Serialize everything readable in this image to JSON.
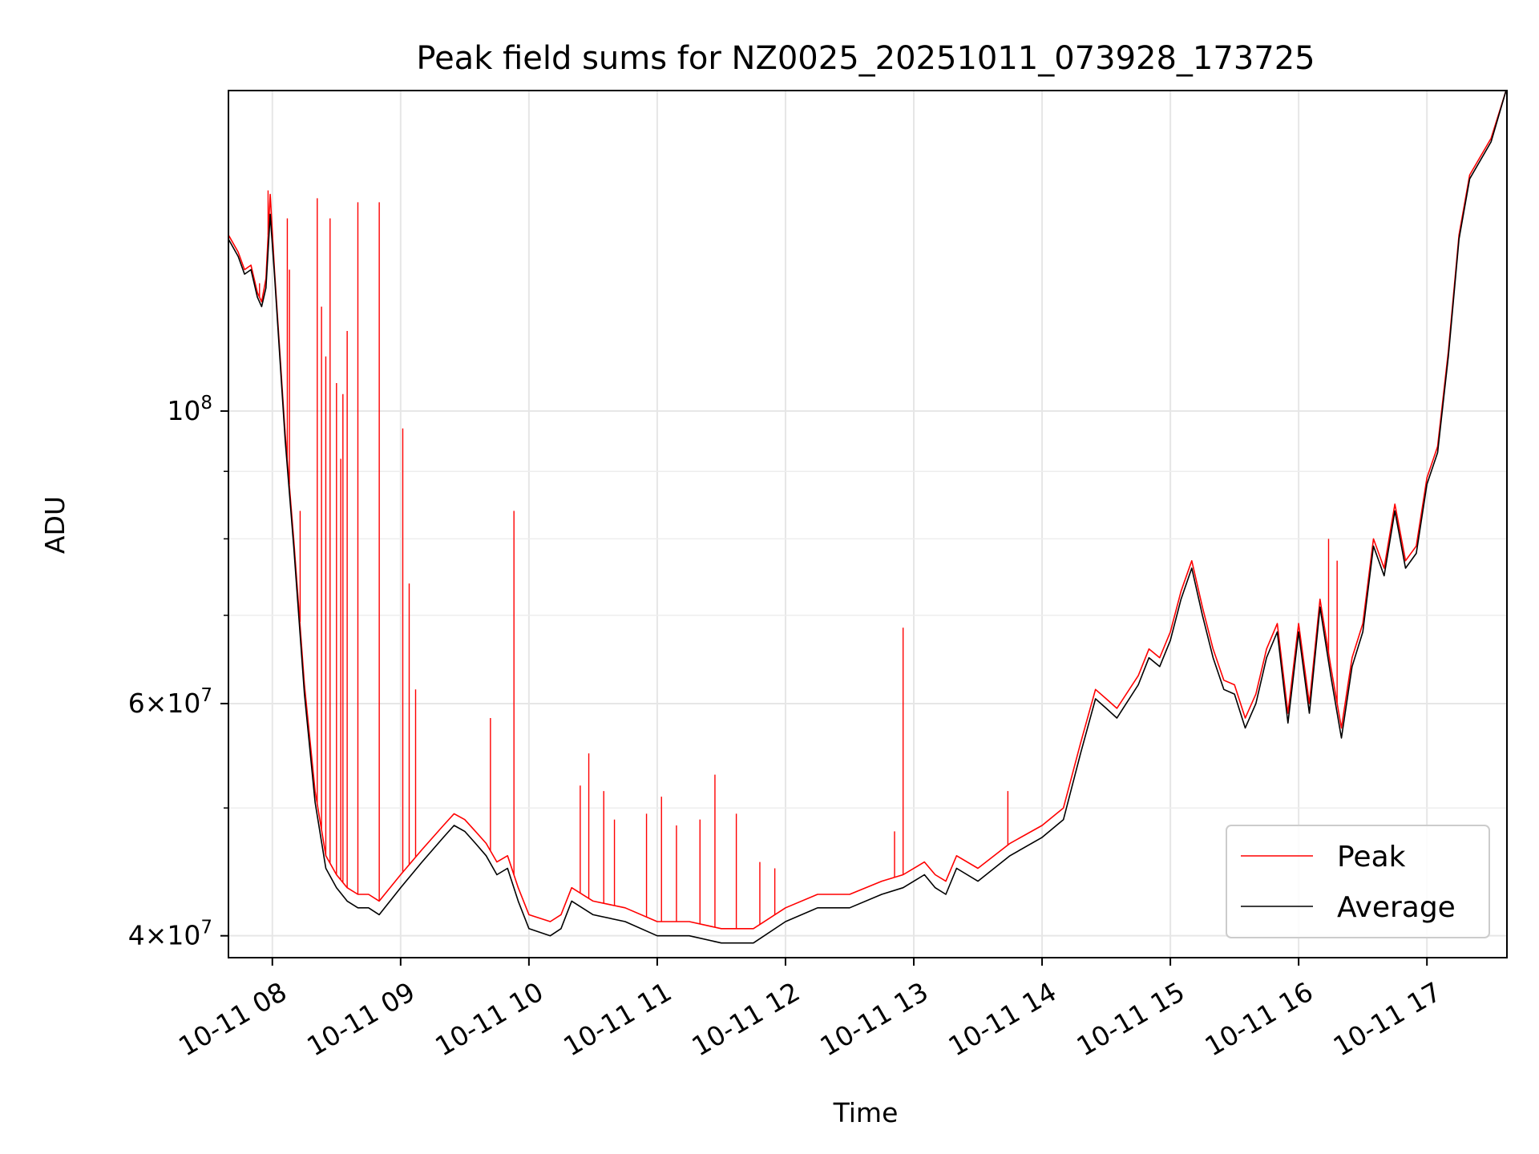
{
  "chart_data": {
    "type": "line",
    "title": "Peak field sums for NZ0025_20251011_073928_173725",
    "xlabel": "Time",
    "ylabel": "ADU",
    "yscale": "log",
    "grid": true,
    "legend_position": "lower-right",
    "xlim": [
      "2025-10-11 07:39:28",
      "2025-10-11 17:37:25"
    ],
    "ylim": [
      38500000,
      175000000
    ],
    "x_ticks": [
      {
        "value": "2025-10-11 08:00",
        "label": "10-11 08"
      },
      {
        "value": "2025-10-11 09:00",
        "label": "10-11 09"
      },
      {
        "value": "2025-10-11 10:00",
        "label": "10-11 10"
      },
      {
        "value": "2025-10-11 11:00",
        "label": "10-11 11"
      },
      {
        "value": "2025-10-11 12:00",
        "label": "10-11 12"
      },
      {
        "value": "2025-10-11 13:00",
        "label": "10-11 13"
      },
      {
        "value": "2025-10-11 14:00",
        "label": "10-11 14"
      },
      {
        "value": "2025-10-11 15:00",
        "label": "10-11 15"
      },
      {
        "value": "2025-10-11 16:00",
        "label": "10-11 16"
      },
      {
        "value": "2025-10-11 17:00",
        "label": "10-11 17"
      }
    ],
    "y_major_ticks": [
      {
        "value": 40000000,
        "mant": "4",
        "exp": "7"
      },
      {
        "value": 60000000,
        "mant": "6",
        "exp": "7"
      },
      {
        "value": 100000000,
        "mant": "",
        "exp": "8"
      }
    ],
    "y_minor_ticks": [
      50000000,
      70000000,
      80000000,
      90000000
    ],
    "series": [
      {
        "name": "Average",
        "color": "#000000",
        "x": [
          "2025-10-11 07:39:28",
          "2025-10-11 07:44",
          "2025-10-11 07:47",
          "2025-10-11 07:50",
          "2025-10-11 07:53",
          "2025-10-11 07:55",
          "2025-10-11 07:57",
          "2025-10-11 07:59",
          "2025-10-11 08:01",
          "2025-10-11 08:06",
          "2025-10-11 08:10",
          "2025-10-11 08:15",
          "2025-10-11 08:20",
          "2025-10-11 08:25",
          "2025-10-11 08:30",
          "2025-10-11 08:35",
          "2025-10-11 08:40",
          "2025-10-11 08:45",
          "2025-10-11 08:50",
          "2025-10-11 09:00",
          "2025-10-11 09:10",
          "2025-10-11 09:20",
          "2025-10-11 09:25",
          "2025-10-11 09:30",
          "2025-10-11 09:35",
          "2025-10-11 09:40",
          "2025-10-11 09:45",
          "2025-10-11 09:50",
          "2025-10-11 09:55",
          "2025-10-11 10:00",
          "2025-10-11 10:10",
          "2025-10-11 10:15",
          "2025-10-11 10:20",
          "2025-10-11 10:30",
          "2025-10-11 10:45",
          "2025-10-11 11:00",
          "2025-10-11 11:15",
          "2025-10-11 11:30",
          "2025-10-11 11:45",
          "2025-10-11 12:00",
          "2025-10-11 12:15",
          "2025-10-11 12:30",
          "2025-10-11 12:45",
          "2025-10-11 12:55",
          "2025-10-11 13:05",
          "2025-10-11 13:10",
          "2025-10-11 13:15",
          "2025-10-11 13:20",
          "2025-10-11 13:30",
          "2025-10-11 13:45",
          "2025-10-11 14:00",
          "2025-10-11 14:10",
          "2025-10-11 14:18",
          "2025-10-11 14:25",
          "2025-10-11 14:30",
          "2025-10-11 14:35",
          "2025-10-11 14:45",
          "2025-10-11 14:50",
          "2025-10-11 14:55",
          "2025-10-11 15:00",
          "2025-10-11 15:05",
          "2025-10-11 15:10",
          "2025-10-11 15:15",
          "2025-10-11 15:20",
          "2025-10-11 15:25",
          "2025-10-11 15:30",
          "2025-10-11 15:35",
          "2025-10-11 15:40",
          "2025-10-11 15:45",
          "2025-10-11 15:50",
          "2025-10-11 15:55",
          "2025-10-11 16:00",
          "2025-10-11 16:05",
          "2025-10-11 16:10",
          "2025-10-11 16:15",
          "2025-10-11 16:20",
          "2025-10-11 16:25",
          "2025-10-11 16:30",
          "2025-10-11 16:35",
          "2025-10-11 16:40",
          "2025-10-11 16:45",
          "2025-10-11 16:50",
          "2025-10-11 16:55",
          "2025-10-11 17:00",
          "2025-10-11 17:05",
          "2025-10-11 17:10",
          "2025-10-11 17:15",
          "2025-10-11 17:20",
          "2025-10-11 17:30",
          "2025-10-11 17:37"
        ],
        "y": [
          135000000,
          131000000,
          127000000,
          128000000,
          122000000,
          120000000,
          124000000,
          141000000,
          127000000,
          95000000,
          79000000,
          61000000,
          50500000,
          45000000,
          43500000,
          42500000,
          42000000,
          42000000,
          41500000,
          43500000,
          45500000,
          47500000,
          48500000,
          48000000,
          47000000,
          46000000,
          44500000,
          45000000,
          42500000,
          40500000,
          40000000,
          40500000,
          42500000,
          41500000,
          41000000,
          40000000,
          40000000,
          39500000,
          39500000,
          41000000,
          42000000,
          42000000,
          43000000,
          43500000,
          44500000,
          43500000,
          43000000,
          45000000,
          44000000,
          46000000,
          47500000,
          49000000,
          55000000,
          60500000,
          59500000,
          58500000,
          62000000,
          65000000,
          64000000,
          67000000,
          72000000,
          76000000,
          70000000,
          65000000,
          61500000,
          61000000,
          57500000,
          60000000,
          65000000,
          68000000,
          58000000,
          68000000,
          59000000,
          71000000,
          63000000,
          56500000,
          64000000,
          68000000,
          79000000,
          75000000,
          84000000,
          76000000,
          78000000,
          88000000,
          93000000,
          110000000,
          135000000,
          150000000,
          160000000,
          175000000
        ]
      },
      {
        "name": "Peak",
        "color": "#ff0000",
        "x": [
          "2025-10-11 07:39:28",
          "2025-10-11 07:44",
          "2025-10-11 07:47",
          "2025-10-11 07:50",
          "2025-10-11 07:53",
          "2025-10-11 07:55",
          "2025-10-11 07:57",
          "2025-10-11 07:59",
          "2025-10-11 08:01",
          "2025-10-11 08:06",
          "2025-10-11 08:10",
          "2025-10-11 08:15",
          "2025-10-11 08:20",
          "2025-10-11 08:25",
          "2025-10-11 08:30",
          "2025-10-11 08:35",
          "2025-10-11 08:40",
          "2025-10-11 08:45",
          "2025-10-11 08:50",
          "2025-10-11 09:00",
          "2025-10-11 09:10",
          "2025-10-11 09:20",
          "2025-10-11 09:25",
          "2025-10-11 09:30",
          "2025-10-11 09:35",
          "2025-10-11 09:40",
          "2025-10-11 09:45",
          "2025-10-11 09:50",
          "2025-10-11 09:55",
          "2025-10-11 10:00",
          "2025-10-11 10:10",
          "2025-10-11 10:15",
          "2025-10-11 10:20",
          "2025-10-11 10:30",
          "2025-10-11 10:45",
          "2025-10-11 11:00",
          "2025-10-11 11:15",
          "2025-10-11 11:30",
          "2025-10-11 11:45",
          "2025-10-11 12:00",
          "2025-10-11 12:15",
          "2025-10-11 12:30",
          "2025-10-11 12:45",
          "2025-10-11 12:55",
          "2025-10-11 13:05",
          "2025-10-11 13:10",
          "2025-10-11 13:15",
          "2025-10-11 13:20",
          "2025-10-11 13:30",
          "2025-10-11 13:45",
          "2025-10-11 14:00",
          "2025-10-11 14:10",
          "2025-10-11 14:18",
          "2025-10-11 14:25",
          "2025-10-11 14:30",
          "2025-10-11 14:35",
          "2025-10-11 14:45",
          "2025-10-11 14:50",
          "2025-10-11 14:55",
          "2025-10-11 15:00",
          "2025-10-11 15:05",
          "2025-10-11 15:10",
          "2025-10-11 15:15",
          "2025-10-11 15:20",
          "2025-10-11 15:25",
          "2025-10-11 15:30",
          "2025-10-11 15:35",
          "2025-10-11 15:40",
          "2025-10-11 15:45",
          "2025-10-11 15:50",
          "2025-10-11 15:55",
          "2025-10-11 16:00",
          "2025-10-11 16:05",
          "2025-10-11 16:10",
          "2025-10-11 16:15",
          "2025-10-11 16:20",
          "2025-10-11 16:25",
          "2025-10-11 16:30",
          "2025-10-11 16:35",
          "2025-10-11 16:40",
          "2025-10-11 16:45",
          "2025-10-11 16:50",
          "2025-10-11 16:55",
          "2025-10-11 17:00",
          "2025-10-11 17:05",
          "2025-10-11 17:10",
          "2025-10-11 17:15",
          "2025-10-11 17:20",
          "2025-10-11 17:30",
          "2025-10-11 17:37"
        ],
        "y": [
          136000000,
          132000000,
          128000000,
          129000000,
          123000000,
          121000000,
          126000000,
          146000000,
          128000000,
          96000000,
          80000000,
          62000000,
          51500000,
          46000000,
          44500000,
          43500000,
          43000000,
          43000000,
          42500000,
          44500000,
          46500000,
          48500000,
          49500000,
          49000000,
          48000000,
          47000000,
          45500000,
          46000000,
          43500000,
          41500000,
          41000000,
          41500000,
          43500000,
          42500000,
          42000000,
          41000000,
          41000000,
          40500000,
          40500000,
          42000000,
          43000000,
          43000000,
          44000000,
          44500000,
          45500000,
          44500000,
          44000000,
          46000000,
          45000000,
          47000000,
          48500000,
          50000000,
          56000000,
          61500000,
          60500000,
          59500000,
          63000000,
          66000000,
          65000000,
          68000000,
          73000000,
          77000000,
          71000000,
          66000000,
          62500000,
          62000000,
          58500000,
          61000000,
          66000000,
          69000000,
          59000000,
          69000000,
          60000000,
          72000000,
          64000000,
          57500000,
          65000000,
          69000000,
          80000000,
          76000000,
          85000000,
          77000000,
          79000000,
          89000000,
          94000000,
          111000000,
          136000000,
          151000000,
          161000000,
          175000000
        ],
        "spikes": [
          {
            "x": "2025-10-11 07:54",
            "y": 125000000
          },
          {
            "x": "2025-10-11 07:58",
            "y": 147000000
          },
          {
            "x": "2025-10-11 08:07",
            "y": 140000000
          },
          {
            "x": "2025-10-11 08:08",
            "y": 128000000
          },
          {
            "x": "2025-10-11 08:13",
            "y": 84000000
          },
          {
            "x": "2025-10-11 08:21",
            "y": 145000000
          },
          {
            "x": "2025-10-11 08:23",
            "y": 120000000
          },
          {
            "x": "2025-10-11 08:25",
            "y": 110000000
          },
          {
            "x": "2025-10-11 08:27",
            "y": 140000000
          },
          {
            "x": "2025-10-11 08:30",
            "y": 105000000
          },
          {
            "x": "2025-10-11 08:32",
            "y": 92000000
          },
          {
            "x": "2025-10-11 08:33",
            "y": 103000000
          },
          {
            "x": "2025-10-11 08:35",
            "y": 115000000
          },
          {
            "x": "2025-10-11 08:40",
            "y": 144000000
          },
          {
            "x": "2025-10-11 08:50",
            "y": 144000000
          },
          {
            "x": "2025-10-11 09:01",
            "y": 97000000
          },
          {
            "x": "2025-10-11 09:04",
            "y": 74000000
          },
          {
            "x": "2025-10-11 09:07",
            "y": 61500000
          },
          {
            "x": "2025-10-11 09:42",
            "y": 58500000
          },
          {
            "x": "2025-10-11 09:53",
            "y": 84000000
          },
          {
            "x": "2025-10-11 10:24",
            "y": 52000000
          },
          {
            "x": "2025-10-11 10:28",
            "y": 55000000
          },
          {
            "x": "2025-10-11 10:35",
            "y": 51500000
          },
          {
            "x": "2025-10-11 10:40",
            "y": 49000000
          },
          {
            "x": "2025-10-11 10:55",
            "y": 49500000
          },
          {
            "x": "2025-10-11 11:02",
            "y": 51000000
          },
          {
            "x": "2025-10-11 11:09",
            "y": 48500000
          },
          {
            "x": "2025-10-11 11:20",
            "y": 49000000
          },
          {
            "x": "2025-10-11 11:27",
            "y": 53000000
          },
          {
            "x": "2025-10-11 11:37",
            "y": 49500000
          },
          {
            "x": "2025-10-11 11:48",
            "y": 45500000
          },
          {
            "x": "2025-10-11 11:55",
            "y": 45000000
          },
          {
            "x": "2025-10-11 12:51",
            "y": 48000000
          },
          {
            "x": "2025-10-11 12:55",
            "y": 68500000
          },
          {
            "x": "2025-10-11 13:44",
            "y": 51500000
          },
          {
            "x": "2025-10-11 16:14",
            "y": 80000000
          },
          {
            "x": "2025-10-11 16:18",
            "y": 77000000
          }
        ]
      }
    ]
  },
  "legend": {
    "items": [
      {
        "label": "Peak",
        "color": "#ff0000"
      },
      {
        "label": "Average",
        "color": "#000000"
      }
    ]
  }
}
